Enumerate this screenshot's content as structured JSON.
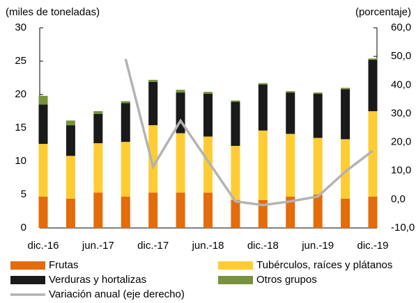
{
  "chart_data": {
    "type": "bar",
    "stacked": true,
    "ylabel": "(miles de toneladas)",
    "y2label": "(porcentaje)",
    "categories": [
      "dic.-16",
      null,
      "jun.-17",
      null,
      "dic.-17",
      null,
      "jun.-18",
      null,
      "dic.-18",
      null,
      "jun.-19",
      null,
      "dic.-19"
    ],
    "series": [
      {
        "name": "Frutas",
        "color": "#e46c0a",
        "values": [
          4.7,
          4.4,
          5.3,
          4.7,
          5.3,
          5.3,
          5.3,
          4.2,
          4.2,
          4.7,
          5.0,
          4.4,
          4.7
        ]
      },
      {
        "name": "Tubérculos, raíces y plátanos",
        "color": "#ffcc33",
        "values": [
          7.9,
          6.4,
          7.4,
          8.2,
          10.1,
          8.9,
          8.4,
          8.1,
          10.4,
          9.4,
          8.5,
          8.9,
          12.8
        ]
      },
      {
        "name": "Verduras y hortalizas",
        "color": "#1a1a1a",
        "values": [
          5.9,
          4.6,
          4.4,
          5.8,
          6.5,
          6.1,
          6.4,
          6.6,
          6.9,
          6.2,
          6.6,
          7.5,
          7.7
        ]
      },
      {
        "name": "Otros grupos",
        "color": "#77933c",
        "values": [
          1.3,
          0.7,
          0.4,
          0.3,
          0.3,
          0.4,
          0.3,
          0.2,
          0.2,
          0.2,
          0.2,
          0.2,
          0.2
        ]
      },
      {
        "name": "Variación anual (eje derecho)",
        "color": "#b3b3b3",
        "type": "line",
        "axis": "y2",
        "values": [
          null,
          null,
          null,
          49.1,
          11.4,
          27.5,
          13.4,
          -0.7,
          -2.0,
          -0.7,
          1.0,
          9.7,
          17.0
        ]
      }
    ],
    "ylim": [
      0,
      30
    ],
    "yticks": [
      0,
      5,
      10,
      15,
      20,
      25,
      30
    ],
    "y2lim": [
      -10,
      60
    ],
    "y2ticks": [
      {
        "value": -10,
        "label": "-10,0"
      },
      {
        "value": 0,
        "label": "0,0"
      },
      {
        "value": 10,
        "label": "10,0"
      },
      {
        "value": 20,
        "label": "20,0"
      },
      {
        "value": 30,
        "label": "30,0"
      },
      {
        "value": 40,
        "label": "40,0"
      },
      {
        "value": 50,
        "label": "50,0"
      },
      {
        "value": 60,
        "label": "60,0"
      }
    ],
    "legend": "bottom"
  }
}
